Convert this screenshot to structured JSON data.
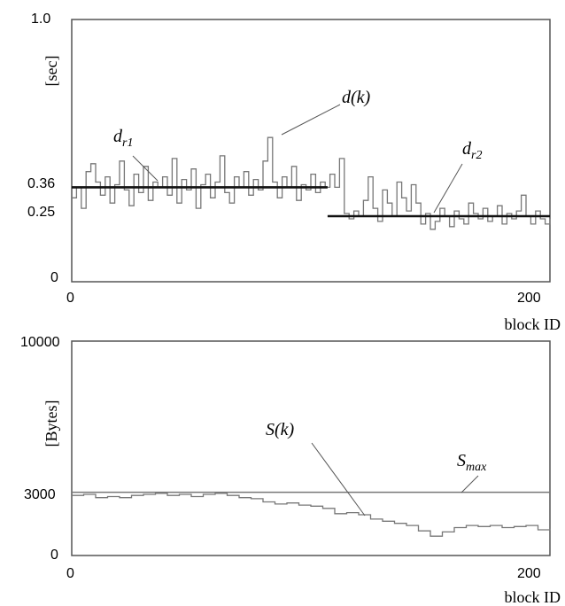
{
  "chart_data": [
    {
      "type": "line",
      "ylabel": "[sec]",
      "xlabel": "block ID",
      "xlim": [
        0,
        200
      ],
      "ylim": [
        0,
        1.0
      ],
      "x_ticks": [
        "0",
        "200"
      ],
      "y_ticks": [
        "1.0",
        "0.36",
        "0.25",
        "0"
      ],
      "series": [
        {
          "name": "d(k)",
          "x": [
            0,
            2,
            4,
            6,
            8,
            10,
            12,
            14,
            16,
            18,
            20,
            22,
            24,
            26,
            28,
            30,
            32,
            34,
            36,
            38,
            40,
            42,
            44,
            46,
            48,
            50,
            52,
            54,
            56,
            58,
            60,
            62,
            64,
            66,
            68,
            70,
            72,
            74,
            76,
            78,
            80,
            82,
            84,
            86,
            88,
            90,
            92,
            94,
            96,
            98,
            100,
            102,
            104,
            106,
            108,
            110,
            112,
            114,
            116,
            118,
            120,
            122,
            124,
            126,
            128,
            130,
            132,
            134,
            136,
            138,
            140,
            142,
            144,
            146,
            148,
            150,
            152,
            154,
            156,
            158,
            160,
            162,
            164,
            166,
            168,
            170,
            172,
            174,
            176,
            178,
            180,
            182,
            184,
            186,
            188,
            190,
            192,
            194,
            196,
            198,
            200
          ],
          "y": [
            0.32,
            0.36,
            0.28,
            0.42,
            0.45,
            0.38,
            0.33,
            0.4,
            0.3,
            0.37,
            0.46,
            0.35,
            0.29,
            0.41,
            0.34,
            0.44,
            0.31,
            0.38,
            0.36,
            0.4,
            0.33,
            0.47,
            0.3,
            0.39,
            0.35,
            0.43,
            0.28,
            0.37,
            0.41,
            0.32,
            0.38,
            0.48,
            0.34,
            0.3,
            0.4,
            0.36,
            0.42,
            0.33,
            0.39,
            0.35,
            0.46,
            0.55,
            0.38,
            0.32,
            0.4,
            0.36,
            0.44,
            0.31,
            0.37,
            0.35,
            0.41,
            0.34,
            0.38,
            0.36,
            0.41,
            0.36,
            0.47,
            0.26,
            0.24,
            0.27,
            0.25,
            0.31,
            0.4,
            0.28,
            0.23,
            0.35,
            0.3,
            0.25,
            0.38,
            0.32,
            0.27,
            0.37,
            0.3,
            0.22,
            0.26,
            0.2,
            0.23,
            0.28,
            0.25,
            0.21,
            0.27,
            0.24,
            0.22,
            0.3,
            0.26,
            0.24,
            0.28,
            0.23,
            0.25,
            0.29,
            0.22,
            0.26,
            0.24,
            0.27,
            0.33,
            0.25,
            0.22,
            0.27,
            0.24,
            0.22,
            0.24
          ]
        },
        {
          "name": "d_r1",
          "x": [
            0,
            107
          ],
          "y": [
            0.36,
            0.36
          ]
        },
        {
          "name": "d_r2",
          "x": [
            107,
            200
          ],
          "y": [
            0.25,
            0.25
          ]
        }
      ],
      "annotations": [
        {
          "label": "d(k)"
        },
        {
          "label": "d",
          "subscript": "r1"
        },
        {
          "label": "d",
          "subscript": "r2"
        }
      ]
    },
    {
      "type": "line",
      "ylabel": "[Bytes]",
      "xlabel": "block ID",
      "xlim": [
        0,
        200
      ],
      "ylim": [
        0,
        10000
      ],
      "x_ticks": [
        "0",
        "200"
      ],
      "y_ticks": [
        "10000",
        "3000",
        "0"
      ],
      "series": [
        {
          "name": "S(k)",
          "x": [
            0,
            5,
            10,
            15,
            20,
            25,
            30,
            35,
            40,
            45,
            50,
            55,
            60,
            65,
            70,
            75,
            80,
            85,
            90,
            95,
            100,
            105,
            110,
            115,
            120,
            125,
            130,
            135,
            140,
            145,
            150,
            155,
            160,
            165,
            170,
            175,
            180,
            185,
            190,
            195,
            200
          ],
          "y": [
            2800,
            2850,
            2700,
            2750,
            2700,
            2800,
            2850,
            2900,
            2800,
            2850,
            2750,
            2850,
            2900,
            2800,
            2700,
            2650,
            2500,
            2400,
            2450,
            2350,
            2300,
            2200,
            1950,
            2000,
            1900,
            1700,
            1600,
            1500,
            1400,
            1150,
            900,
            1100,
            1300,
            1400,
            1350,
            1400,
            1300,
            1350,
            1400,
            1200,
            1250
          ]
        },
        {
          "name": "S_max",
          "x": [
            0,
            200
          ],
          "y": [
            2950,
            2950
          ]
        }
      ],
      "annotations": [
        {
          "label": "S(k)"
        },
        {
          "label": "S",
          "subscript": "max"
        }
      ]
    }
  ]
}
